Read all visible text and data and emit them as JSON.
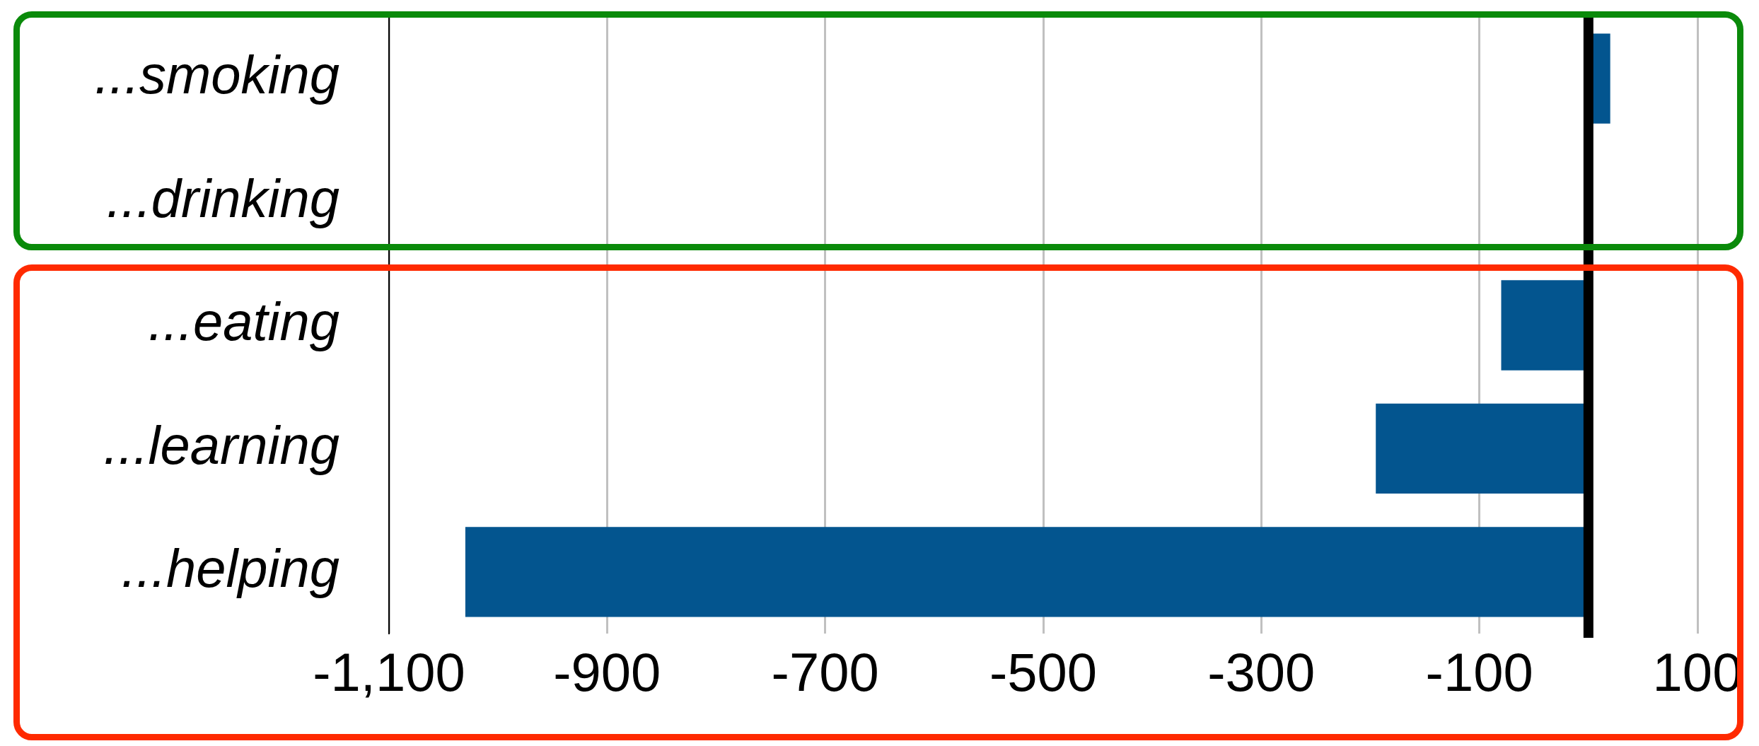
{
  "chart_data": {
    "type": "bar",
    "orientation": "horizontal",
    "categories": [
      "...smoking",
      "...drinking",
      "...eating",
      "...learning",
      "...helping"
    ],
    "values": [
      20,
      0,
      -80,
      -195,
      -1030
    ],
    "color": "#03558f",
    "xlim": [
      -1100,
      100
    ],
    "xticks": [
      {
        "value": -1100,
        "label": "-1,100"
      },
      -900,
      -700,
      -500,
      -300,
      -100,
      100
    ],
    "grid": "x",
    "legend": false,
    "ref_lines": [
      {
        "axis": "x",
        "value": 0,
        "color": "#000000"
      }
    ]
  }
}
